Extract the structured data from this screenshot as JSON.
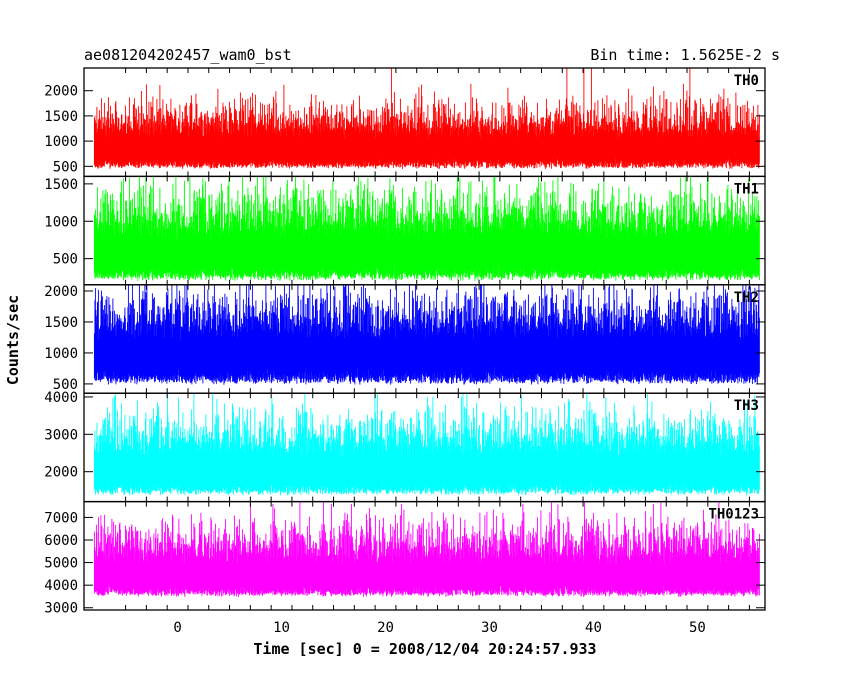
{
  "chart_data": {
    "type": "line",
    "title_left": "ae081204202457_wam0_bst",
    "title_right": "Bin time: 1.5625E-2 s",
    "xlabel": "Time [sec] 0 = 2008/12/04 20:24:57.933",
    "ylabel": "Counts/sec",
    "xlim": [
      -9,
      56.5
    ],
    "xticks": [
      0,
      10,
      20,
      30,
      40,
      50
    ],
    "data_range_x": [
      -8,
      56
    ],
    "panels": [
      {
        "name": "TH0",
        "color": "#ff0000",
        "ylim": [
          300,
          2450
        ],
        "yticks": [
          500,
          1000,
          1500,
          2000
        ],
        "baseline": 500,
        "mean": 1050,
        "typical_max": 1800,
        "peak_max": 2450
      },
      {
        "name": "TH1",
        "color": "#00ff00",
        "ylim": [
          150,
          1600
        ],
        "yticks": [
          500,
          1000,
          1500
        ],
        "baseline": 250,
        "mean": 750,
        "typical_max": 1450,
        "peak_max": 1600
      },
      {
        "name": "TH2",
        "color": "#0000ff",
        "ylim": [
          350,
          2100
        ],
        "yticks": [
          500,
          1000,
          1500,
          2000
        ],
        "baseline": 550,
        "mean": 1200,
        "typical_max": 2000,
        "peak_max": 2100
      },
      {
        "name": "TH3",
        "color": "#00ffff",
        "ylim": [
          1200,
          4100
        ],
        "yticks": [
          2000,
          3000,
          4000
        ],
        "baseline": 1450,
        "mean": 2350,
        "typical_max": 3700,
        "peak_max": 4100
      },
      {
        "name": "TH0123",
        "color": "#ff00ff",
        "ylim": [
          2900,
          7700
        ],
        "yticks": [
          3000,
          4000,
          5000,
          6000,
          7000
        ],
        "baseline": 3600,
        "mean": 4900,
        "typical_max": 7000,
        "peak_max": 7600
      }
    ]
  }
}
